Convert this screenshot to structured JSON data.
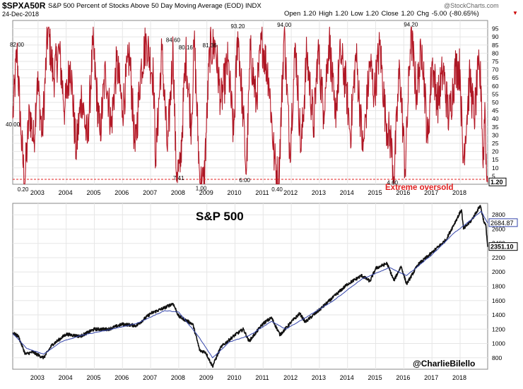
{
  "header": {
    "symbol": "$SPXA50R",
    "description": "S&P 500 Percent of Stocks Above 50 Day Moving Average (EOD) INDX",
    "date": "24-Dec-2018",
    "ohlc": "Open 1.20  High 1.20  Low 1.20  Close 1.20  Chg -5.00 (-80.65%)",
    "provider": "@StockCharts.com",
    "down_arrow": "▼"
  },
  "colors": {
    "breadth_line": "#cc1f2f",
    "breadth_dark": "#7a0f18",
    "oversold_line": "#e02020",
    "price_line": "#111111",
    "ma_line": "#3344aa",
    "grid": "#e6e6e6",
    "axis": "#888888"
  },
  "chart_data": [
    {
      "type": "line",
      "title": "$SPXA50R S&P 500 Percent of Stocks Above 50 Day Moving Average (EOD) INDX",
      "x_range": [
        2002.1,
        2018.98
      ],
      "ylim": [
        0,
        100
      ],
      "y_ticks": [
        5,
        10,
        15,
        20,
        25,
        30,
        35,
        40,
        45,
        50,
        55,
        60,
        65,
        70,
        75,
        80,
        85,
        90,
        95
      ],
      "x_ticks": [
        "2003",
        "2004",
        "2005",
        "2006",
        "2007",
        "2008",
        "2009",
        "2010",
        "2011",
        "2012",
        "2013",
        "2014",
        "2015",
        "2016",
        "2017",
        "2018"
      ],
      "threshold": 3,
      "threshold_label": "Extreme oversold",
      "last_value_label": "1.20",
      "series": [
        {
          "name": "% Above 50 Day MA",
          "anchors": [
            [
              2002.1,
              40
            ],
            [
              2002.25,
              82
            ],
            [
              2002.4,
              30
            ],
            [
              2002.52,
              0.2
            ],
            [
              2002.7,
              45
            ],
            [
              2002.85,
              25
            ],
            [
              2002.97,
              65
            ],
            [
              2003.15,
              30
            ],
            [
              2003.35,
              95
            ],
            [
              2003.55,
              65
            ],
            [
              2003.75,
              82
            ],
            [
              2003.95,
              45
            ],
            [
              2004.15,
              75
            ],
            [
              2004.35,
              20
            ],
            [
              2004.55,
              55
            ],
            [
              2004.75,
              25
            ],
            [
              2004.95,
              85
            ],
            [
              2005.2,
              30
            ],
            [
              2005.4,
              70
            ],
            [
              2005.6,
              35
            ],
            [
              2005.8,
              75
            ],
            [
              2006.0,
              45
            ],
            [
              2006.25,
              80
            ],
            [
              2006.45,
              20
            ],
            [
              2006.65,
              70
            ],
            [
              2006.85,
              88
            ],
            [
              2007.1,
              65
            ],
            [
              2007.18,
              15
            ],
            [
              2007.4,
              82
            ],
            [
              2007.6,
              20
            ],
            [
              2007.8,
              84.6
            ],
            [
              2007.9,
              10
            ],
            [
              2008.05,
              7.41
            ],
            [
              2008.25,
              80.16
            ],
            [
              2008.45,
              35
            ],
            [
              2008.55,
              88
            ],
            [
              2008.75,
              1
            ],
            [
              2008.9,
              1
            ],
            [
              2009.1,
              81.36
            ],
            [
              2009.3,
              85
            ],
            [
              2009.5,
              50
            ],
            [
              2009.75,
              75
            ],
            [
              2009.95,
              30
            ],
            [
              2010.1,
              93.2
            ],
            [
              2010.3,
              40
            ],
            [
              2010.4,
              6
            ],
            [
              2010.55,
              82
            ],
            [
              2010.75,
              50
            ],
            [
              2010.95,
              88
            ],
            [
              2011.2,
              65
            ],
            [
              2011.4,
              15
            ],
            [
              2011.55,
              0.4
            ],
            [
              2011.75,
              94
            ],
            [
              2011.95,
              20
            ],
            [
              2012.15,
              85
            ],
            [
              2012.35,
              20
            ],
            [
              2012.55,
              80
            ],
            [
              2012.8,
              35
            ],
            [
              2012.95,
              82
            ],
            [
              2013.15,
              45
            ],
            [
              2013.35,
              90
            ],
            [
              2013.55,
              40
            ],
            [
              2013.75,
              80
            ],
            [
              2013.95,
              60
            ],
            [
              2014.1,
              30
            ],
            [
              2014.3,
              80
            ],
            [
              2014.55,
              20
            ],
            [
              2014.8,
              75
            ],
            [
              2014.95,
              55
            ],
            [
              2015.15,
              85
            ],
            [
              2015.35,
              40
            ],
            [
              2015.55,
              25
            ],
            [
              2015.65,
              4.6
            ],
            [
              2015.85,
              72
            ],
            [
              2016.05,
              8
            ],
            [
              2016.25,
              94.2
            ],
            [
              2016.45,
              55
            ],
            [
              2016.65,
              85
            ],
            [
              2016.85,
              25
            ],
            [
              2017.0,
              75
            ],
            [
              2017.2,
              50
            ],
            [
              2017.4,
              70
            ],
            [
              2017.6,
              40
            ],
            [
              2017.85,
              72
            ],
            [
              2018.0,
              70
            ],
            [
              2018.1,
              13
            ],
            [
              2018.35,
              65
            ],
            [
              2018.5,
              40
            ],
            [
              2018.65,
              70
            ],
            [
              2018.75,
              60
            ],
            [
              2018.82,
              10
            ],
            [
              2018.88,
              50
            ],
            [
              2018.94,
              6
            ],
            [
              2018.98,
              1.2
            ]
          ]
        }
      ],
      "annotations": [
        {
          "x": 2002.25,
          "y": 82,
          "text": "82.00"
        },
        {
          "x": 2002.1,
          "y": 40,
          "text": "40.00"
        },
        {
          "x": 2002.52,
          "y": 0.2,
          "text": "0.20"
        },
        {
          "x": 2007.8,
          "y": 84.6,
          "text": "84.60"
        },
        {
          "x": 2008.25,
          "y": 80.16,
          "text": "80.16"
        },
        {
          "x": 2009.1,
          "y": 81.36,
          "text": "81.36"
        },
        {
          "x": 2008.05,
          "y": 7.41,
          "text": "7.41"
        },
        {
          "x": 2008.85,
          "y": 1,
          "text": "1.00"
        },
        {
          "x": 2010.1,
          "y": 93.2,
          "text": "93.20"
        },
        {
          "x": 2010.4,
          "y": 6,
          "text": "6.00"
        },
        {
          "x": 2011.75,
          "y": 94,
          "text": "94.00"
        },
        {
          "x": 2011.55,
          "y": 0.4,
          "text": "0.40"
        },
        {
          "x": 2015.65,
          "y": 4.6,
          "text": "4.60"
        },
        {
          "x": 2016.25,
          "y": 94.2,
          "text": "94.20"
        }
      ]
    },
    {
      "type": "line",
      "title": "S&P 500",
      "x_range": [
        2002.1,
        2018.98
      ],
      "ylim": [
        640,
        2960
      ],
      "y_ticks": [
        800,
        1000,
        1200,
        1400,
        1600,
        1800,
        2000,
        2200,
        2400,
        2600,
        2800
      ],
      "x_ticks": [
        "2003",
        "2004",
        "2005",
        "2006",
        "2007",
        "2008",
        "2009",
        "2010",
        "2011",
        "2012",
        "2013",
        "2014",
        "2015",
        "2016",
        "2017",
        "2018"
      ],
      "value_labels": [
        "2684.87",
        "2351.10"
      ],
      "credit": "@CharlieBilello",
      "series": [
        {
          "name": "S&P 500",
          "anchors": [
            [
              2002.1,
              1150
            ],
            [
              2002.3,
              1100
            ],
            [
              2002.55,
              850
            ],
            [
              2002.8,
              880
            ],
            [
              2003.2,
              800
            ],
            [
              2003.5,
              980
            ],
            [
              2004.0,
              1130
            ],
            [
              2004.5,
              1100
            ],
            [
              2005.0,
              1200
            ],
            [
              2005.5,
              1200
            ],
            [
              2006.0,
              1270
            ],
            [
              2006.5,
              1250
            ],
            [
              2007.0,
              1420
            ],
            [
              2007.5,
              1500
            ],
            [
              2007.8,
              1560
            ],
            [
              2008.0,
              1380
            ],
            [
              2008.5,
              1270
            ],
            [
              2008.75,
              900
            ],
            [
              2008.95,
              880
            ],
            [
              2009.2,
              680
            ],
            [
              2009.5,
              950
            ],
            [
              2010.0,
              1120
            ],
            [
              2010.3,
              1200
            ],
            [
              2010.5,
              1030
            ],
            [
              2011.0,
              1280
            ],
            [
              2011.3,
              1360
            ],
            [
              2011.6,
              1120
            ],
            [
              2012.0,
              1300
            ],
            [
              2012.3,
              1420
            ],
            [
              2012.5,
              1300
            ],
            [
              2013.0,
              1470
            ],
            [
              2013.5,
              1650
            ],
            [
              2014.0,
              1830
            ],
            [
              2014.5,
              1950
            ],
            [
              2014.8,
              1870
            ],
            [
              2015.0,
              2050
            ],
            [
              2015.4,
              2120
            ],
            [
              2015.65,
              1880
            ],
            [
              2015.9,
              2080
            ],
            [
              2016.1,
              1830
            ],
            [
              2016.5,
              2100
            ],
            [
              2017.0,
              2270
            ],
            [
              2017.5,
              2450
            ],
            [
              2018.05,
              2870
            ],
            [
              2018.12,
              2600
            ],
            [
              2018.4,
              2720
            ],
            [
              2018.72,
              2930
            ],
            [
              2018.85,
              2700
            ],
            [
              2018.92,
              2640
            ],
            [
              2018.98,
              2351
            ]
          ]
        },
        {
          "name": "Moving Average",
          "anchors": [
            [
              2002.1,
              1140
            ],
            [
              2002.6,
              930
            ],
            [
              2003.2,
              850
            ],
            [
              2003.8,
              1020
            ],
            [
              2004.5,
              1110
            ],
            [
              2005.5,
              1190
            ],
            [
              2006.5,
              1280
            ],
            [
              2007.5,
              1460
            ],
            [
              2008.0,
              1440
            ],
            [
              2008.7,
              1100
            ],
            [
              2009.2,
              800
            ],
            [
              2009.8,
              1020
            ],
            [
              2010.5,
              1110
            ],
            [
              2011.3,
              1310
            ],
            [
              2011.8,
              1200
            ],
            [
              2012.5,
              1360
            ],
            [
              2013.5,
              1600
            ],
            [
              2014.5,
              1900
            ],
            [
              2015.5,
              2060
            ],
            [
              2016.1,
              1950
            ],
            [
              2017.0,
              2240
            ],
            [
              2017.8,
              2550
            ],
            [
              2018.3,
              2700
            ],
            [
              2018.75,
              2850
            ],
            [
              2018.98,
              2684.87
            ]
          ]
        }
      ]
    }
  ]
}
